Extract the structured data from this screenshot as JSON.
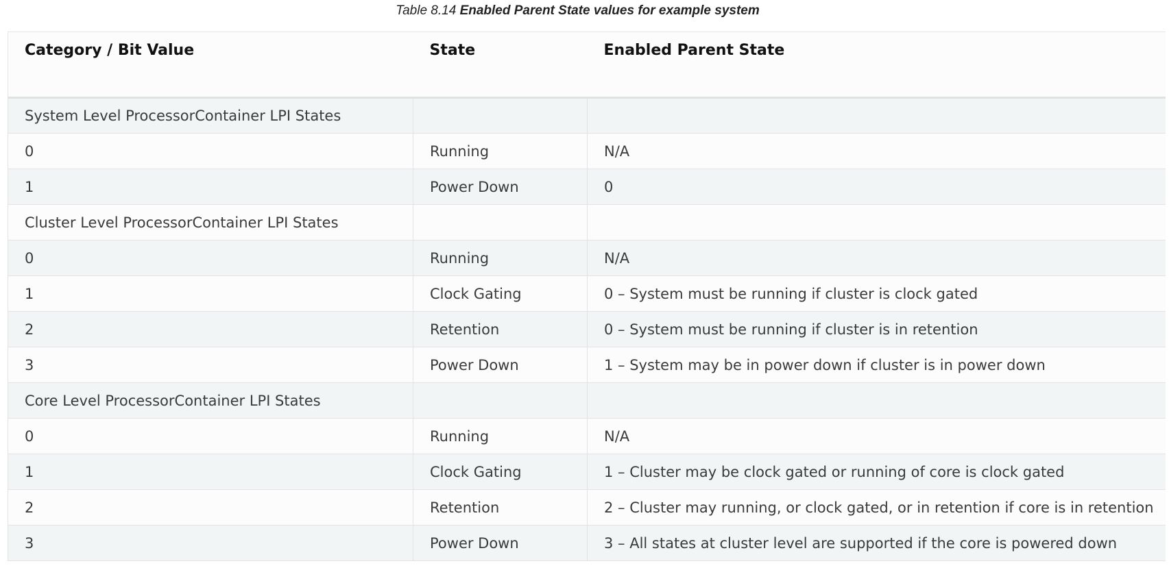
{
  "caption": {
    "number": "Table 8.14",
    "title": "Enabled Parent State values for example system"
  },
  "table": {
    "headers": [
      "Category / Bit Value",
      "State",
      "Enabled Parent State"
    ],
    "rows": [
      [
        "System Level ProcessorContainer LPI States",
        "",
        ""
      ],
      [
        "0",
        "Running",
        "N/A"
      ],
      [
        "1",
        "Power Down",
        "0"
      ],
      [
        "Cluster Level ProcessorContainer LPI States",
        "",
        ""
      ],
      [
        "0",
        "Running",
        "N/A"
      ],
      [
        "1",
        "Clock Gating",
        "0 – System must be running if cluster is clock gated"
      ],
      [
        "2",
        "Retention",
        "0 – System must be running if cluster is in retention"
      ],
      [
        "3",
        "Power Down",
        "1 – System may be in power down if cluster is in power down"
      ],
      [
        "Core Level ProcessorContainer LPI States",
        "",
        ""
      ],
      [
        "0",
        "Running",
        "N/A"
      ],
      [
        "1",
        "Clock Gating",
        "1 – Cluster may be clock gated or running of core is clock gated"
      ],
      [
        "2",
        "Retention",
        "2 – Cluster may running, or clock gated, or in retention if core is in retention"
      ],
      [
        "3",
        "Power Down",
        "3 – All states at cluster level are supported if the core is powered down"
      ]
    ]
  }
}
